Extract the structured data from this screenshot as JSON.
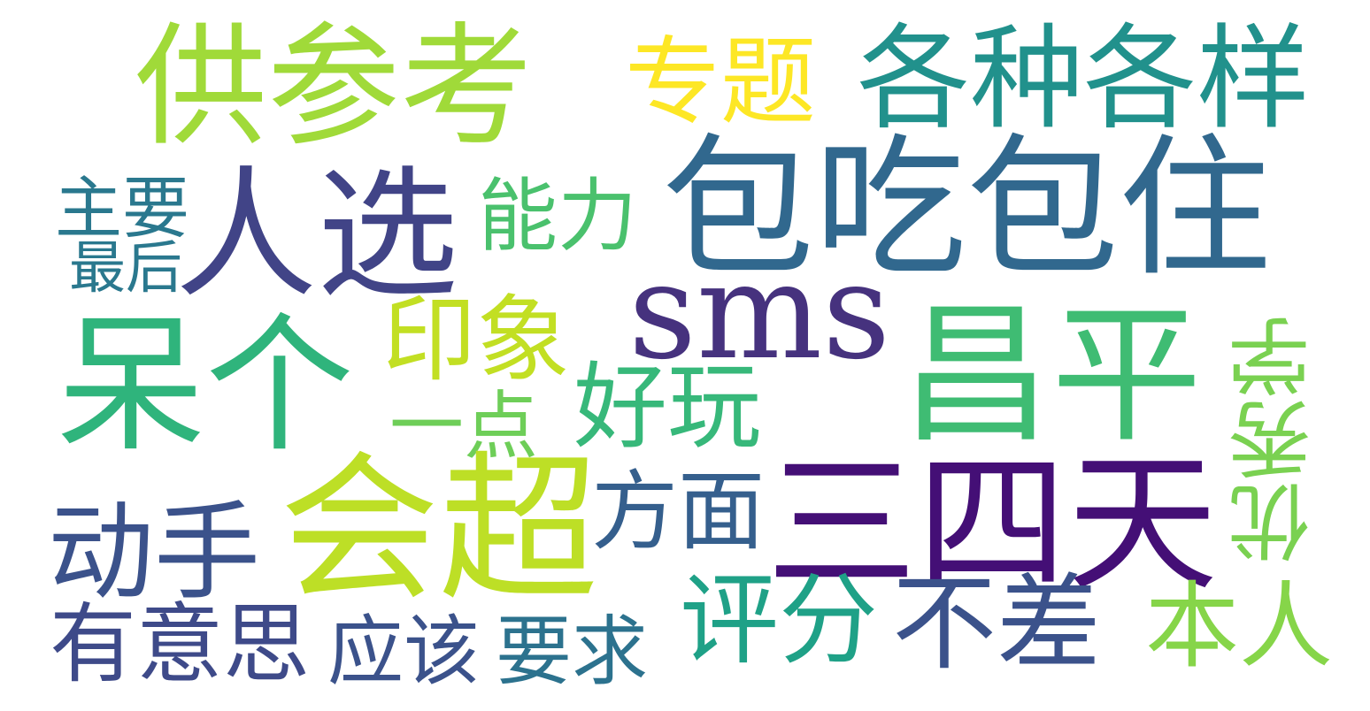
{
  "words": [
    {
      "text": "供参考",
      "color": "#a0da39"
    },
    {
      "text": "专题",
      "color": "#fde725"
    },
    {
      "text": "各种各样",
      "color": "#21918c"
    },
    {
      "text": "主要",
      "color": "#2a788e"
    },
    {
      "text": "人选",
      "color": "#414487"
    },
    {
      "text": "能力",
      "color": "#4ac16d"
    },
    {
      "text": "包吃包住",
      "color": "#31688e"
    },
    {
      "text": "最后",
      "color": "#2a788e"
    },
    {
      "text": "sms",
      "color": "#46327e"
    },
    {
      "text": "呆个",
      "color": "#2fb47c"
    },
    {
      "text": "印象",
      "color": "#c2df23"
    },
    {
      "text": "昌平",
      "color": "#3fbc73"
    },
    {
      "text": "好玩",
      "color": "#37b87a"
    },
    {
      "text": "一点",
      "color": "#6ece58"
    },
    {
      "text": "优秀学",
      "color": "#7ad151"
    },
    {
      "text": "会超",
      "color": "#bddf26"
    },
    {
      "text": "三四天",
      "color": "#440f76"
    },
    {
      "text": "方面",
      "color": "#355f8d"
    },
    {
      "text": "动手",
      "color": "#3b528b"
    },
    {
      "text": "评分",
      "color": "#1fa187"
    },
    {
      "text": "不差",
      "color": "#3b528b"
    },
    {
      "text": "本人",
      "color": "#86d549"
    },
    {
      "text": "有意思",
      "color": "#3e4a89"
    },
    {
      "text": "应该",
      "color": "#3b528b"
    },
    {
      "text": "要求",
      "color": "#2c728e"
    }
  ]
}
